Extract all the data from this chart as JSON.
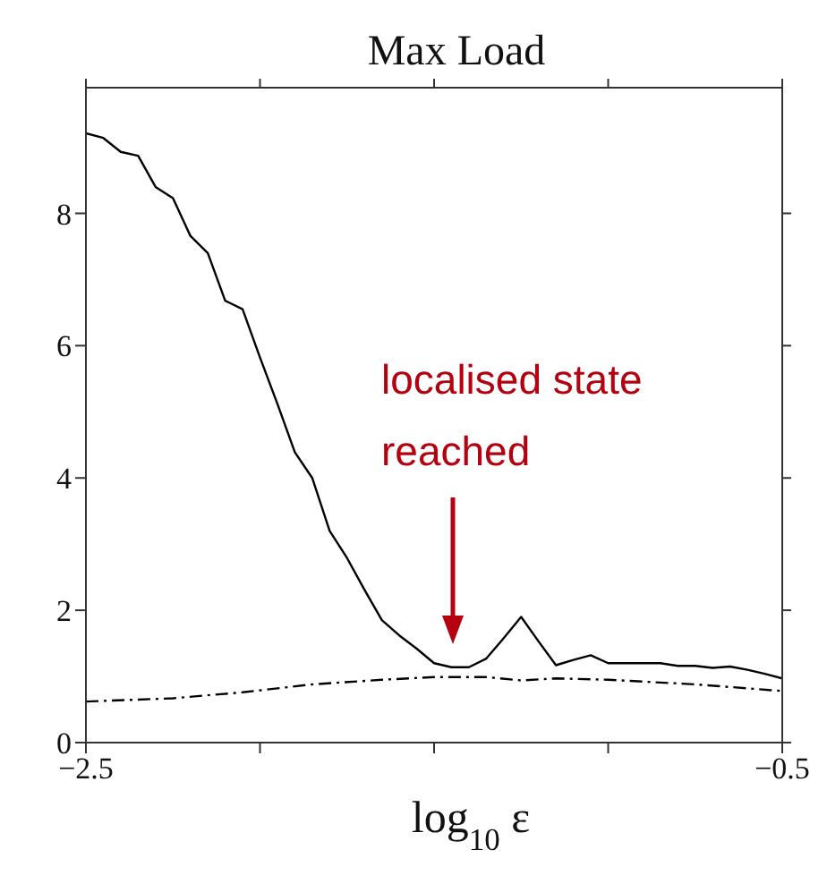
{
  "chart_data": {
    "type": "line",
    "title": "Max Load",
    "xlabel": "log$_{10}$ ε",
    "x": [
      -2.5,
      -2.45,
      -2.4,
      -2.35,
      -2.3,
      -2.25,
      -2.2,
      -2.15,
      -2.1,
      -2.05,
      -2.0,
      -1.95,
      -1.9,
      -1.85,
      -1.8,
      -1.75,
      -1.7,
      -1.65,
      -1.6,
      -1.55,
      -1.5,
      -1.45,
      -1.4,
      -1.35,
      -1.3,
      -1.25,
      -1.2,
      -1.15,
      -1.1,
      -1.05,
      -1.0,
      -0.95,
      -0.9,
      -0.85,
      -0.8,
      -0.75,
      -0.7,
      -0.65,
      -0.6,
      -0.55,
      -0.5
    ],
    "series": [
      {
        "color": "#000000",
        "line_style": "solid",
        "values": [
          9.21,
          9.14,
          8.93,
          8.87,
          8.4,
          8.23,
          7.66,
          7.4,
          6.68,
          6.55,
          5.82,
          5.12,
          4.39,
          4.0,
          3.2,
          2.79,
          2.31,
          1.85,
          1.62,
          1.42,
          1.2,
          1.14,
          1.14,
          1.27,
          1.58,
          1.9,
          1.53,
          1.17,
          1.25,
          1.32,
          1.2,
          1.2,
          1.2,
          1.2,
          1.16,
          1.16,
          1.13,
          1.15,
          1.1,
          1.04,
          0.97
        ]
      },
      {
        "color": "#000000",
        "line_style": "dashdot",
        "x": [
          -2.5,
          -2.25,
          -2.05,
          -1.85,
          -1.65,
          -1.5,
          -1.35,
          -1.25,
          -1.15,
          -1.0,
          -0.75,
          -0.5
        ],
        "values": [
          0.62,
          0.67,
          0.76,
          0.88,
          0.95,
          0.99,
          0.99,
          0.94,
          0.97,
          0.95,
          0.88,
          0.78
        ]
      }
    ],
    "xlim": [
      -2.5,
      -0.5
    ],
    "xticks": [
      {
        "value": -2.5,
        "label": "−2.5"
      },
      {
        "value": -2,
        "label": null
      },
      {
        "value": -1.5,
        "label": null
      },
      {
        "value": -1,
        "label": null
      },
      {
        "value": -0.5,
        "label": "−0.5"
      }
    ],
    "ylim": [
      0,
      9.9
    ],
    "yticks": [
      0,
      2,
      4,
      6,
      8
    ],
    "marker": "none",
    "annotations": [
      "localised state reached"
    ]
  }
}
